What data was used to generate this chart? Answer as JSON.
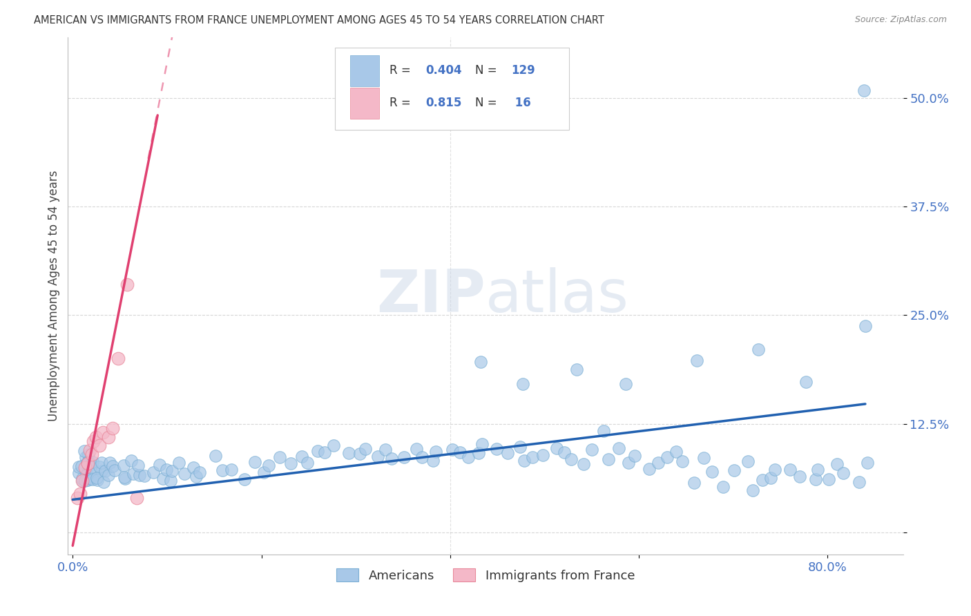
{
  "title": "AMERICAN VS IMMIGRANTS FROM FRANCE UNEMPLOYMENT AMONG AGES 45 TO 54 YEARS CORRELATION CHART",
  "source": "Source: ZipAtlas.com",
  "ylabel": "Unemployment Among Ages 45 to 54 years",
  "watermark": "ZIPatlas",
  "blue_color": "#a8c8e8",
  "blue_edge": "#7bafd4",
  "pink_color": "#f4b8c8",
  "pink_edge": "#e8889a",
  "trend_blue": "#2060b0",
  "trend_pink": "#e04070",
  "grid_color": "#cccccc",
  "background_color": "#ffffff",
  "tick_color": "#4472c4",
  "title_color": "#333333",
  "source_color": "#888888",
  "legend_r1": "0.404",
  "legend_n1": "129",
  "legend_r2": "0.815",
  "legend_n2": " 16",
  "xlim": [
    -0.005,
    0.88
  ],
  "ylim": [
    -0.025,
    0.57
  ],
  "americans_x": [
    0.005,
    0.007,
    0.008,
    0.009,
    0.01,
    0.011,
    0.012,
    0.013,
    0.014,
    0.015,
    0.016,
    0.017,
    0.018,
    0.019,
    0.02,
    0.021,
    0.022,
    0.023,
    0.024,
    0.025,
    0.026,
    0.027,
    0.028,
    0.03,
    0.032,
    0.034,
    0.036,
    0.038,
    0.04,
    0.043,
    0.046,
    0.05,
    0.054,
    0.058,
    0.062,
    0.066,
    0.07,
    0.075,
    0.08,
    0.085,
    0.09,
    0.095,
    0.1,
    0.105,
    0.11,
    0.115,
    0.12,
    0.125,
    0.13,
    0.14,
    0.15,
    0.16,
    0.17,
    0.18,
    0.19,
    0.2,
    0.21,
    0.22,
    0.23,
    0.24,
    0.25,
    0.26,
    0.27,
    0.28,
    0.29,
    0.3,
    0.31,
    0.32,
    0.33,
    0.34,
    0.35,
    0.36,
    0.37,
    0.38,
    0.39,
    0.4,
    0.41,
    0.42,
    0.43,
    0.44,
    0.45,
    0.46,
    0.47,
    0.48,
    0.49,
    0.5,
    0.51,
    0.52,
    0.53,
    0.54,
    0.55,
    0.56,
    0.57,
    0.58,
    0.59,
    0.6,
    0.61,
    0.62,
    0.63,
    0.64,
    0.65,
    0.66,
    0.67,
    0.68,
    0.69,
    0.7,
    0.71,
    0.72,
    0.73,
    0.74,
    0.75,
    0.76,
    0.77,
    0.78,
    0.79,
    0.8,
    0.81,
    0.82,
    0.83,
    0.84,
    0.43,
    0.48,
    0.53,
    0.59,
    0.66,
    0.72,
    0.78,
    0.84,
    0.84
  ],
  "americans_y": [
    0.07,
    0.08,
    0.06,
    0.09,
    0.075,
    0.065,
    0.085,
    0.07,
    0.095,
    0.08,
    0.07,
    0.06,
    0.075,
    0.065,
    0.08,
    0.07,
    0.06,
    0.075,
    0.065,
    0.08,
    0.07,
    0.06,
    0.075,
    0.065,
    0.08,
    0.07,
    0.06,
    0.075,
    0.065,
    0.08,
    0.07,
    0.065,
    0.075,
    0.06,
    0.07,
    0.08,
    0.065,
    0.075,
    0.06,
    0.07,
    0.08,
    0.065,
    0.075,
    0.06,
    0.07,
    0.08,
    0.065,
    0.075,
    0.06,
    0.07,
    0.08,
    0.07,
    0.075,
    0.065,
    0.08,
    0.07,
    0.075,
    0.085,
    0.08,
    0.09,
    0.085,
    0.095,
    0.09,
    0.1,
    0.095,
    0.09,
    0.095,
    0.09,
    0.095,
    0.085,
    0.09,
    0.095,
    0.085,
    0.09,
    0.08,
    0.1,
    0.095,
    0.085,
    0.09,
    0.1,
    0.085,
    0.09,
    0.095,
    0.08,
    0.085,
    0.09,
    0.095,
    0.095,
    0.085,
    0.08,
    0.095,
    0.11,
    0.09,
    0.095,
    0.085,
    0.09,
    0.07,
    0.08,
    0.09,
    0.095,
    0.08,
    0.06,
    0.085,
    0.07,
    0.055,
    0.065,
    0.08,
    0.055,
    0.06,
    0.065,
    0.07,
    0.075,
    0.065,
    0.06,
    0.07,
    0.065,
    0.08,
    0.07,
    0.06,
    0.075,
    0.195,
    0.175,
    0.185,
    0.165,
    0.195,
    0.215,
    0.175,
    0.505,
    0.24
  ],
  "france_x": [
    0.005,
    0.008,
    0.01,
    0.013,
    0.016,
    0.018,
    0.02,
    0.022,
    0.025,
    0.028,
    0.032,
    0.038,
    0.042,
    0.048,
    0.058,
    0.068
  ],
  "france_y": [
    0.04,
    0.045,
    0.06,
    0.075,
    0.08,
    0.095,
    0.09,
    0.105,
    0.11,
    0.1,
    0.115,
    0.11,
    0.12,
    0.2,
    0.285,
    0.04
  ],
  "blue_trend": [
    0.0,
    0.84,
    0.038,
    0.148
  ],
  "pink_trend_solid": [
    0.0,
    0.09,
    -0.015,
    0.48
  ],
  "pink_trend_dash": [
    0.08,
    0.165,
    0.43,
    0.9
  ]
}
